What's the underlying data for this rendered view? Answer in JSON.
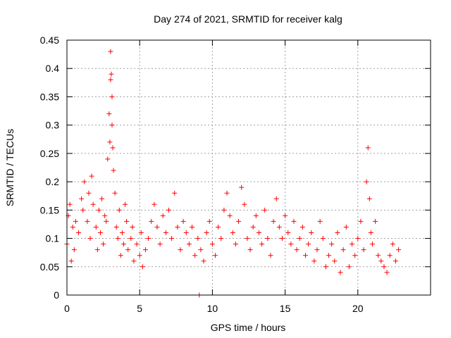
{
  "chart_data": {
    "type": "scatter",
    "title": "Day 274 of 2021, SRMTID for receiver kalg",
    "xlabel": "GPS time / hours",
    "ylabel": "SRMTID / TECUs",
    "xlim": [
      0,
      25
    ],
    "ylim": [
      0,
      0.45
    ],
    "xticks": [
      0,
      5,
      10,
      15,
      20
    ],
    "xtick_labels": [
      "0",
      "5",
      "10",
      "15",
      "20"
    ],
    "yticks": [
      0,
      0.05,
      0.1,
      0.15,
      0.2,
      0.25,
      0.3,
      0.35,
      0.4,
      0.45
    ],
    "ytick_labels": [
      "0",
      "0.05",
      "0.1",
      "0.15",
      "0.2",
      "0.25",
      "0.3",
      "0.35",
      "0.4",
      "0.45"
    ],
    "grid": true,
    "marker": "+",
    "marker_color": "#ff0000",
    "series": [
      {
        "name": "SRMTID",
        "x": [
          0.0,
          0.1,
          0.2,
          0.3,
          0.4,
          0.5,
          0.6,
          0.8,
          1.0,
          1.1,
          1.2,
          1.4,
          1.5,
          1.6,
          1.7,
          1.8,
          2.0,
          2.1,
          2.2,
          2.3,
          2.4,
          2.5,
          2.6,
          2.7,
          2.8,
          2.9,
          2.95,
          3.0,
          3.0,
          3.05,
          3.1,
          3.1,
          3.15,
          3.2,
          3.3,
          3.4,
          3.5,
          3.6,
          3.7,
          3.8,
          3.9,
          4.0,
          4.1,
          4.2,
          4.4,
          4.5,
          4.6,
          4.8,
          5.0,
          5.1,
          5.2,
          5.4,
          5.6,
          5.8,
          6.0,
          6.2,
          6.4,
          6.6,
          6.8,
          7.0,
          7.2,
          7.4,
          7.6,
          7.8,
          8.0,
          8.2,
          8.4,
          8.6,
          8.8,
          9.0,
          9.1,
          9.2,
          9.4,
          9.6,
          9.8,
          10.0,
          10.2,
          10.4,
          10.6,
          10.8,
          11.0,
          11.2,
          11.4,
          11.6,
          11.8,
          12.0,
          12.2,
          12.4,
          12.6,
          12.8,
          13.0,
          13.2,
          13.4,
          13.6,
          13.8,
          14.0,
          14.2,
          14.4,
          14.6,
          14.8,
          15.0,
          15.2,
          15.4,
          15.6,
          15.8,
          16.0,
          16.2,
          16.4,
          16.6,
          16.8,
          17.0,
          17.2,
          17.4,
          17.6,
          17.8,
          18.0,
          18.2,
          18.4,
          18.6,
          18.8,
          19.0,
          19.2,
          19.4,
          19.6,
          19.8,
          20.0,
          20.2,
          20.4,
          20.6,
          20.7,
          20.8,
          20.9,
          21.0,
          21.2,
          21.4,
          21.6,
          21.8,
          22.0,
          22.2,
          22.4,
          22.6,
          22.8
        ],
        "y": [
          0.09,
          0.14,
          0.16,
          0.06,
          0.12,
          0.08,
          0.13,
          0.11,
          0.17,
          0.15,
          0.2,
          0.13,
          0.18,
          0.1,
          0.21,
          0.16,
          0.12,
          0.08,
          0.15,
          0.11,
          0.17,
          0.09,
          0.14,
          0.13,
          0.24,
          0.32,
          0.27,
          0.43,
          0.38,
          0.39,
          0.35,
          0.3,
          0.26,
          0.22,
          0.18,
          0.12,
          0.1,
          0.15,
          0.07,
          0.11,
          0.09,
          0.16,
          0.13,
          0.08,
          0.1,
          0.12,
          0.06,
          0.09,
          0.07,
          0.11,
          0.05,
          0.08,
          0.1,
          0.13,
          0.16,
          0.12,
          0.09,
          0.14,
          0.11,
          0.15,
          0.1,
          0.18,
          0.12,
          0.08,
          0.13,
          0.11,
          0.09,
          0.12,
          0.07,
          0.1,
          0.0,
          0.08,
          0.06,
          0.11,
          0.13,
          0.09,
          0.07,
          0.12,
          0.1,
          0.15,
          0.18,
          0.14,
          0.11,
          0.09,
          0.13,
          0.19,
          0.16,
          0.1,
          0.08,
          0.12,
          0.14,
          0.11,
          0.09,
          0.15,
          0.1,
          0.07,
          0.13,
          0.17,
          0.12,
          0.1,
          0.14,
          0.11,
          0.09,
          0.13,
          0.08,
          0.1,
          0.12,
          0.07,
          0.09,
          0.11,
          0.06,
          0.08,
          0.13,
          0.1,
          0.05,
          0.07,
          0.09,
          0.06,
          0.11,
          0.04,
          0.08,
          0.12,
          0.05,
          0.09,
          0.07,
          0.1,
          0.13,
          0.08,
          0.2,
          0.26,
          0.17,
          0.11,
          0.09,
          0.13,
          0.07,
          0.06,
          0.05,
          0.04,
          0.07,
          0.09,
          0.06,
          0.08
        ]
      }
    ]
  }
}
